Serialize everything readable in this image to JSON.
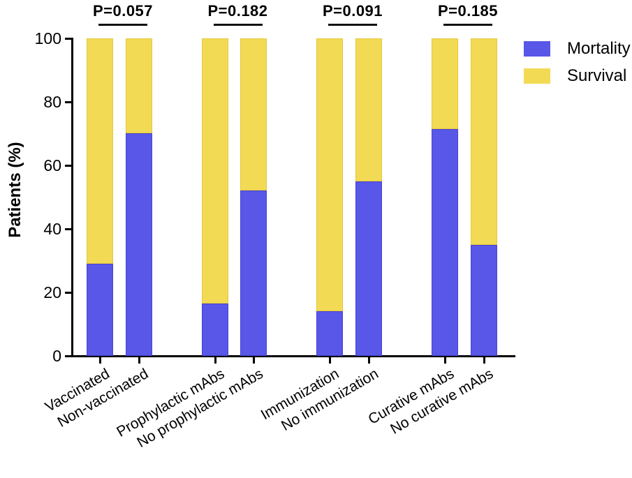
{
  "chart_data": {
    "type": "bar",
    "stacked": true,
    "title": "",
    "xlabel": "",
    "ylabel": "Patients (%)",
    "ylim": [
      0,
      100
    ],
    "yticks": [
      0,
      20,
      40,
      60,
      80,
      100
    ],
    "grid": false,
    "legend_position": "top-right",
    "categories": [
      "Vaccinated",
      "Non-vaccinated",
      "Prophylactic mAbs",
      "No prophylactic mAbs",
      "Immunization",
      "No immunization",
      "Curative mAbs",
      "No curative mAbs"
    ],
    "series": [
      {
        "name": "Mortality",
        "color": "#5857E8",
        "edge_color": "#4643D2",
        "values": [
          29,
          70,
          16.5,
          52,
          14,
          55,
          71.5,
          35
        ]
      },
      {
        "name": "Survival",
        "color": "#F3DA55",
        "edge_color": "#E4C83E",
        "values": [
          71,
          30,
          83.5,
          48,
          86,
          45,
          28.5,
          65
        ]
      }
    ],
    "p_annotations": [
      {
        "pair": [
          "Vaccinated",
          "Non-vaccinated"
        ],
        "text": "P=0.057"
      },
      {
        "pair": [
          "Prophylactic mAbs",
          "No prophylactic mAbs"
        ],
        "text": "P=0.182"
      },
      {
        "pair": [
          "Immunization",
          "No immunization"
        ],
        "text": "P=0.091"
      },
      {
        "pair": [
          "Curative mAbs",
          "No curative mAbs"
        ],
        "text": "P=0.185"
      }
    ],
    "legend": [
      {
        "label": "Mortality",
        "color": "#5857E8"
      },
      {
        "label": "Survival",
        "color": "#F3DA55"
      }
    ],
    "axis_color": "#000000",
    "text_color": "#000000"
  }
}
